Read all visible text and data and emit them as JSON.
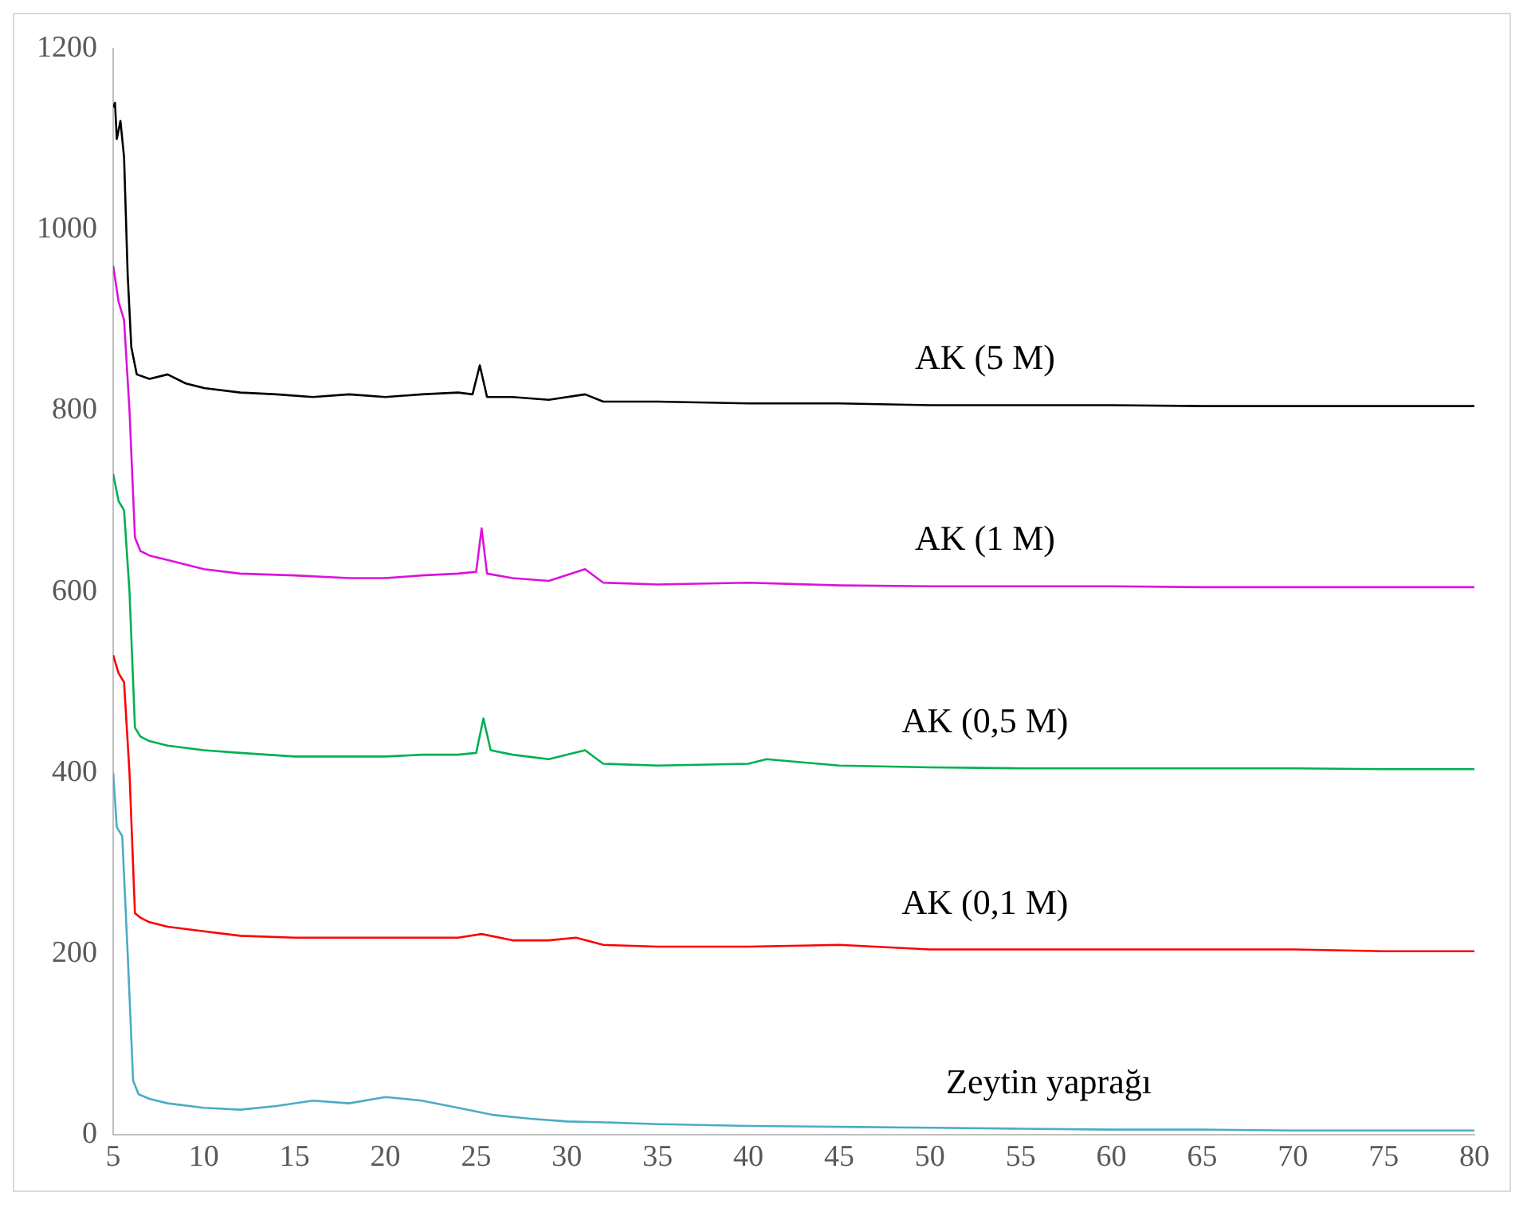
{
  "chart_data": {
    "type": "line",
    "xlim": [
      5,
      80
    ],
    "xticks": [
      5,
      10,
      15,
      20,
      25,
      30,
      35,
      40,
      45,
      50,
      55,
      60,
      65,
      70,
      75,
      80
    ],
    "ylim": [
      0,
      1200
    ],
    "yticks": [
      0,
      200,
      400,
      600,
      800,
      1000,
      1200
    ],
    "grid": false,
    "legend": false,
    "marker": "none",
    "line_style": "solid",
    "series": [
      {
        "name": "AK (5 M)",
        "color": "#000000",
        "x": [
          5,
          5.1,
          5.2,
          5.4,
          5.6,
          5.8,
          6,
          6.3,
          7,
          8,
          9,
          10,
          12,
          14,
          16,
          18,
          20,
          22,
          24,
          24.8,
          25.2,
          25.6,
          27,
          29,
          31,
          32,
          35,
          40,
          45,
          50,
          55,
          60,
          65,
          70,
          75,
          80
        ],
        "values": [
          1135,
          1140,
          1100,
          1120,
          1080,
          950,
          870,
          840,
          835,
          840,
          830,
          825,
          820,
          818,
          815,
          818,
          815,
          818,
          820,
          818,
          850,
          815,
          815,
          812,
          818,
          810,
          810,
          808,
          808,
          806,
          806,
          806,
          805,
          805,
          805,
          805
        ]
      },
      {
        "name": "AK (1 M)",
        "color": "#dd11dd",
        "x": [
          5,
          5.3,
          5.6,
          5.9,
          6.2,
          6.5,
          7,
          8,
          10,
          12,
          15,
          18,
          20,
          22,
          24,
          25,
          25.3,
          25.6,
          27,
          29,
          31,
          32,
          35,
          40,
          45,
          50,
          55,
          60,
          65,
          70,
          75,
          80
        ],
        "values": [
          960,
          920,
          900,
          800,
          660,
          645,
          640,
          635,
          625,
          620,
          618,
          615,
          615,
          618,
          620,
          622,
          670,
          620,
          615,
          612,
          625,
          610,
          608,
          610,
          607,
          606,
          606,
          606,
          605,
          605,
          605,
          605
        ]
      },
      {
        "name": "AK (0,5 M)",
        "color": "#00b050",
        "x": [
          5,
          5.3,
          5.6,
          5.9,
          6.2,
          6.5,
          7,
          8,
          10,
          12,
          15,
          18,
          20,
          22,
          24,
          25,
          25.4,
          25.8,
          27,
          29,
          31,
          32,
          35,
          40,
          41,
          45,
          50,
          55,
          60,
          65,
          70,
          75,
          80
        ],
        "values": [
          730,
          700,
          690,
          600,
          450,
          440,
          435,
          430,
          425,
          422,
          418,
          418,
          418,
          420,
          420,
          422,
          460,
          425,
          420,
          415,
          425,
          410,
          408,
          410,
          415,
          408,
          406,
          405,
          405,
          405,
          405,
          404,
          404
        ]
      },
      {
        "name": "AK (0,1 M)",
        "color": "#ff0000",
        "x": [
          5,
          5.3,
          5.6,
          5.9,
          6.2,
          6.5,
          7,
          8,
          10,
          12,
          15,
          18,
          20,
          22,
          24,
          25.3,
          27,
          29,
          30.5,
          32,
          35,
          40,
          45,
          50,
          55,
          60,
          65,
          70,
          75,
          80
        ],
        "values": [
          530,
          510,
          500,
          400,
          245,
          240,
          235,
          230,
          225,
          220,
          218,
          218,
          218,
          218,
          218,
          222,
          215,
          215,
          218,
          210,
          208,
          208,
          210,
          205,
          205,
          205,
          205,
          205,
          203,
          203
        ]
      },
      {
        "name": "Zeytin yaprağı",
        "color": "#4bacc6",
        "x": [
          5,
          5.2,
          5.5,
          5.8,
          6.1,
          6.4,
          7,
          8,
          10,
          12,
          14,
          16,
          18,
          20,
          22,
          24,
          26,
          28,
          30,
          32,
          35,
          40,
          45,
          50,
          55,
          60,
          65,
          70,
          75,
          80
        ],
        "values": [
          400,
          340,
          330,
          200,
          60,
          45,
          40,
          35,
          30,
          28,
          32,
          38,
          35,
          42,
          38,
          30,
          22,
          18,
          15,
          14,
          12,
          10,
          9,
          8,
          7,
          6,
          6,
          5,
          5,
          5
        ]
      }
    ]
  }
}
